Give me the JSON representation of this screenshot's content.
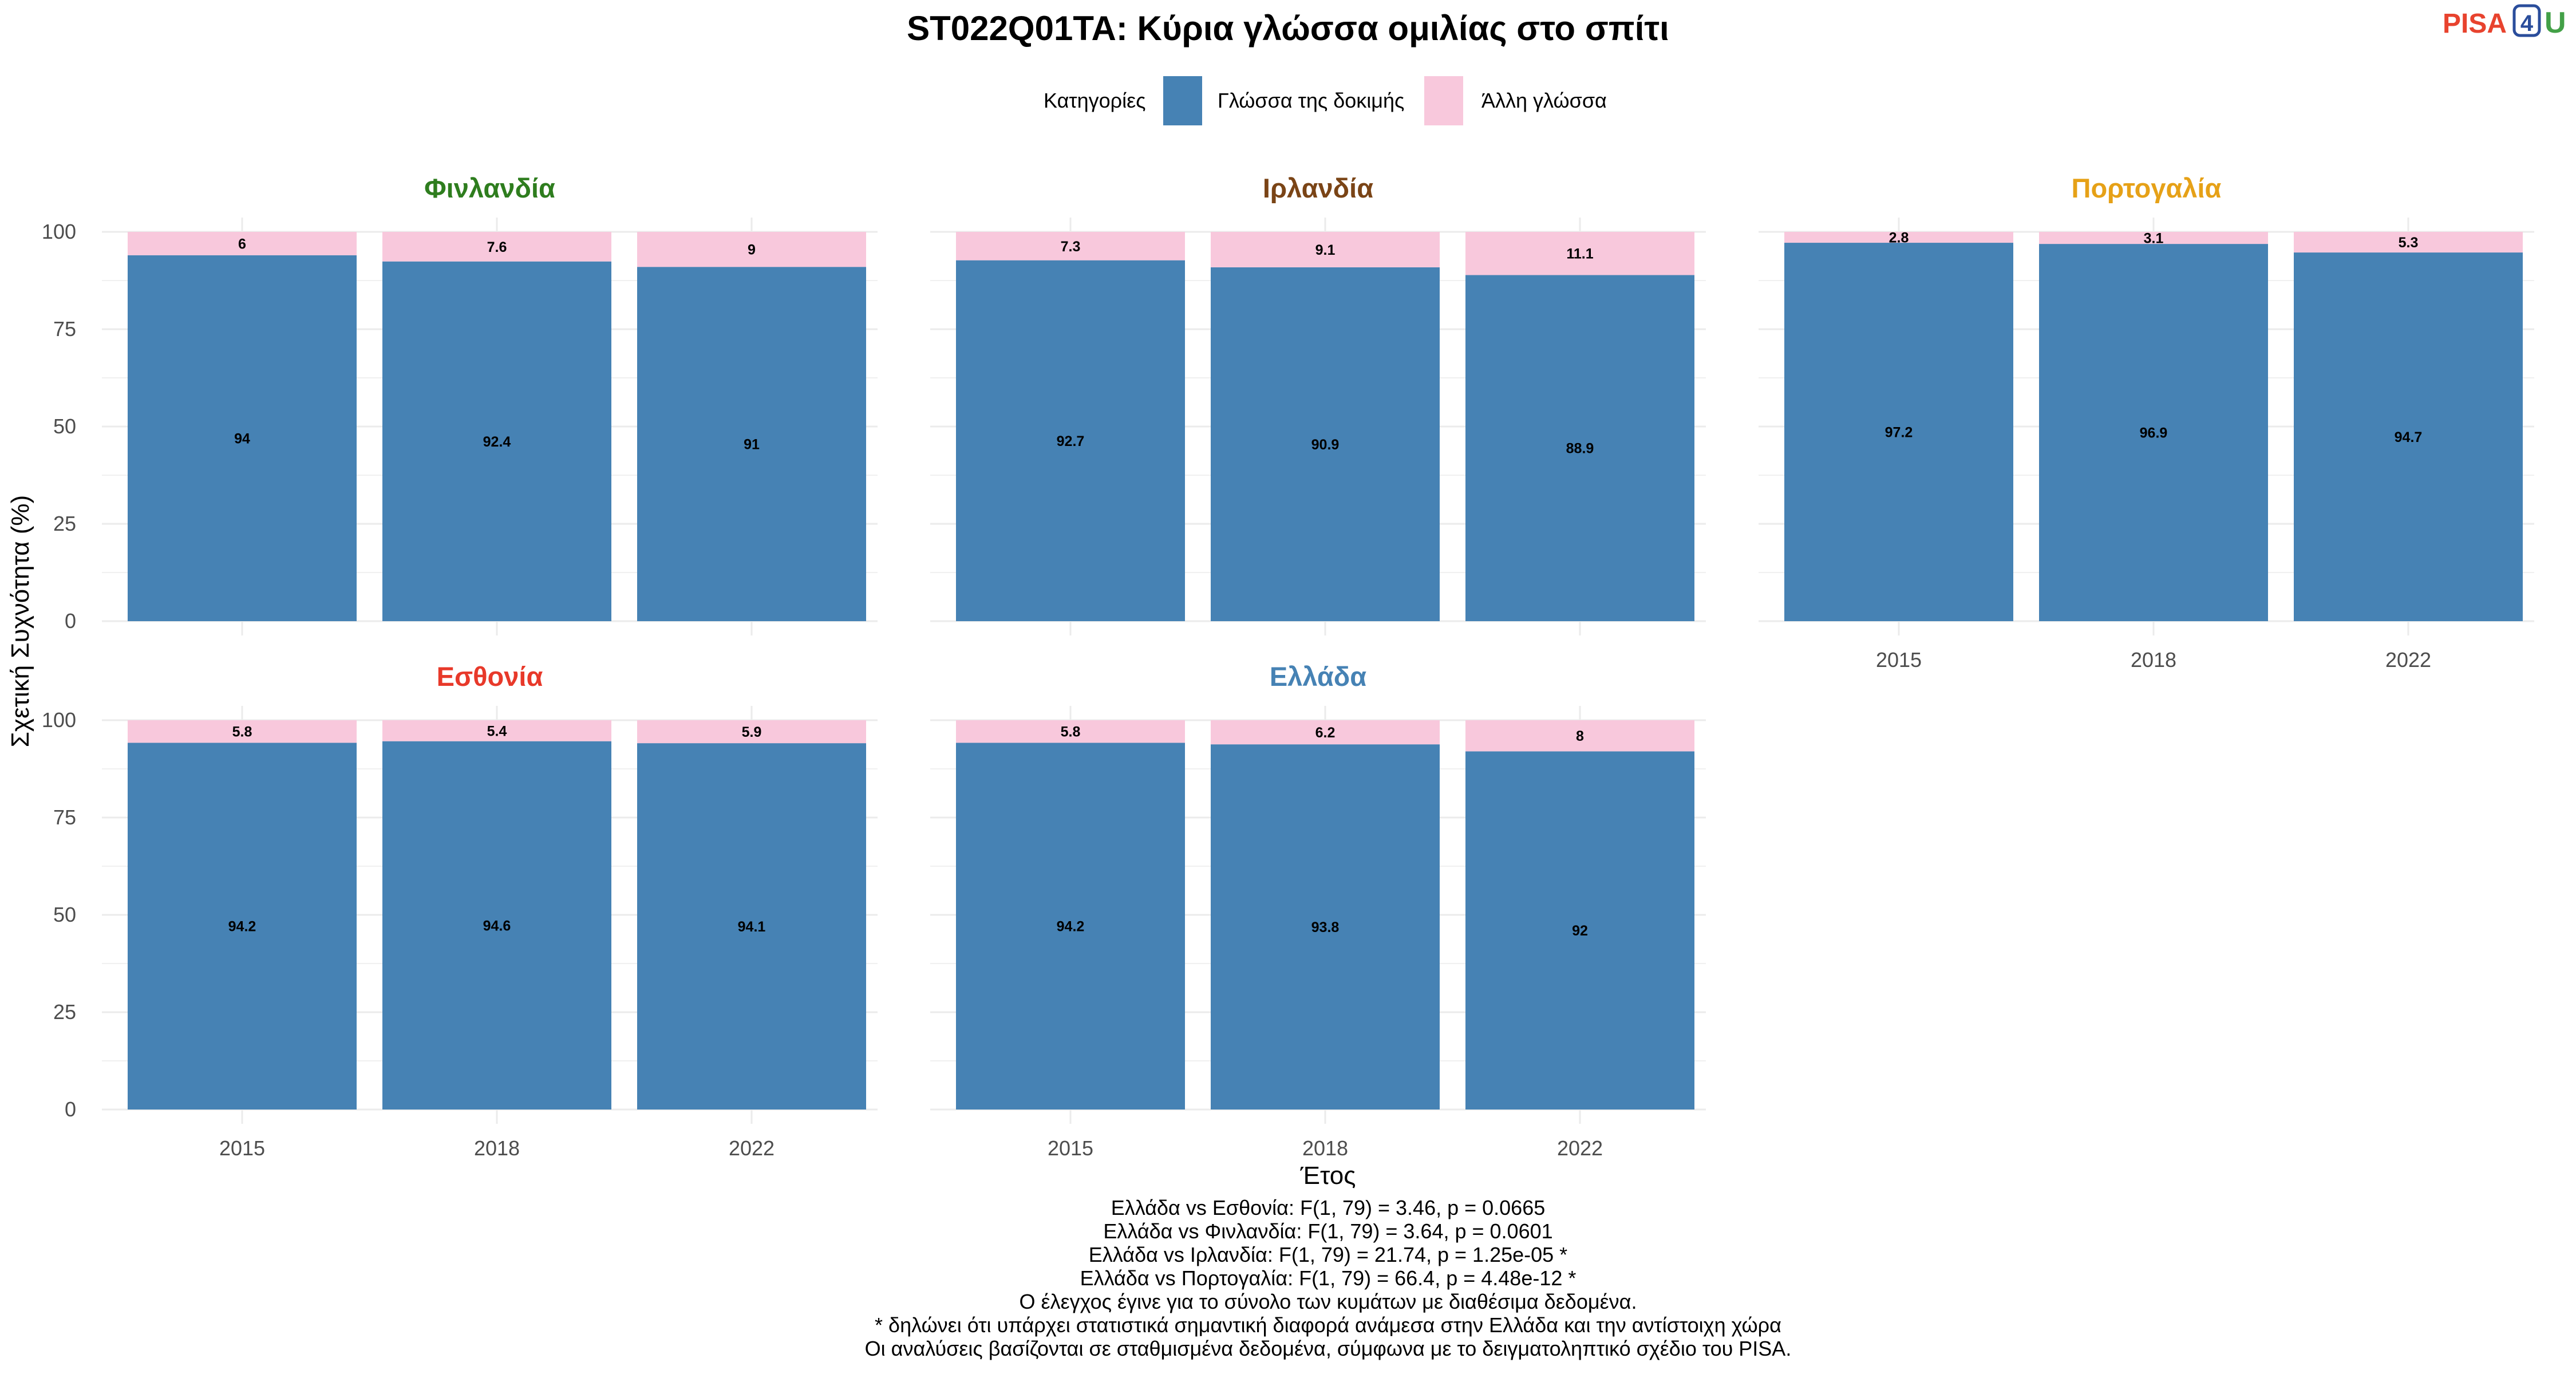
{
  "title": "ST022Q01TA: Κύρια γλώσσα ομιλίας στο σπίτι",
  "logo": {
    "text_a": "PISA",
    "text_b": "4",
    "text_c": "U",
    "colors": [
      "#e8432e",
      "#2a4d9b",
      "#43a047"
    ]
  },
  "legend": {
    "title": "Κατηγορίες",
    "position": "top"
  },
  "colors": {
    "test_language": "#4682b4",
    "other_language": "#f8c8dc",
    "grid": "#ebebeb",
    "tick_text": "#4d4d4d"
  },
  "chart_data": {
    "type": "bar",
    "stacked": true,
    "x_label": "Έτος",
    "y_label": "Σχετική Συχνότητα (%)",
    "ylim": [
      0,
      100
    ],
    "y_ticks": [
      0,
      25,
      50,
      75,
      100
    ],
    "categories": [
      "2015",
      "2018",
      "2022"
    ],
    "series_names": [
      "Γλώσσα της δοκιμής",
      "Άλλη γλώσσα"
    ],
    "facets": [
      {
        "name": "Φινλανδία",
        "color": "#2e7d1e",
        "test": [
          94,
          92.4,
          91
        ],
        "other": [
          6,
          7.6,
          9
        ],
        "test_labels": [
          "94",
          "92.4",
          "91"
        ],
        "other_labels": [
          "6",
          "7.6",
          "9"
        ]
      },
      {
        "name": "Ιρλανδία",
        "color": "#7a4416",
        "test": [
          92.7,
          90.9,
          88.9
        ],
        "other": [
          7.3,
          9.1,
          11.1
        ],
        "test_labels": [
          "92.7",
          "90.9",
          "88.9"
        ],
        "other_labels": [
          "7.3",
          "9.1",
          "11.1"
        ]
      },
      {
        "name": "Πορτογαλία",
        "color": "#e6a117",
        "test": [
          97.2,
          96.9,
          94.7
        ],
        "other": [
          2.8,
          3.1,
          5.3
        ],
        "test_labels": [
          "97.2",
          "96.9",
          "94.7"
        ],
        "other_labels": [
          "2.8",
          "3.1",
          "5.3"
        ]
      },
      {
        "name": "Εσθονία",
        "color": "#e8392a",
        "test": [
          94.2,
          94.6,
          94.1
        ],
        "other": [
          5.8,
          5.4,
          5.9
        ],
        "test_labels": [
          "94.2",
          "94.6",
          "94.1"
        ],
        "other_labels": [
          "5.8",
          "5.4",
          "5.9"
        ]
      },
      {
        "name": "Ελλάδα",
        "color": "#4682b4",
        "test": [
          94.2,
          93.8,
          92
        ],
        "other": [
          5.8,
          6.2,
          8
        ],
        "test_labels": [
          "94.2",
          "93.8",
          "92"
        ],
        "other_labels": [
          "5.8",
          "6.2",
          "8"
        ]
      }
    ]
  },
  "caption": [
    "Ελλάδα vs Εσθονία: F(1, 79) = 3.46, p = 0.0665",
    "Ελλάδα vs Φινλανδία: F(1, 79) = 3.64, p = 0.0601",
    "Ελλάδα vs Ιρλανδία: F(1, 79) = 21.74, p = 1.25e-05 *",
    "Ελλάδα vs Πορτογαλία: F(1, 79) = 66.4, p = 4.48e-12 *",
    "Ο έλεγχος έγινε για το σύνολο των κυμάτων με διαθέσιμα δεδομένα.",
    "* δηλώνει ότι υπάρχει στατιστικά σημαντική διαφορά ανάμεσα στην Ελλάδα και την αντίστοιχη χώρα",
    "Οι αναλύσεις βασίζονται σε σταθμισμένα δεδομένα, σύμφωνα με το δειγματοληπτικό σχέδιο του PISA."
  ]
}
